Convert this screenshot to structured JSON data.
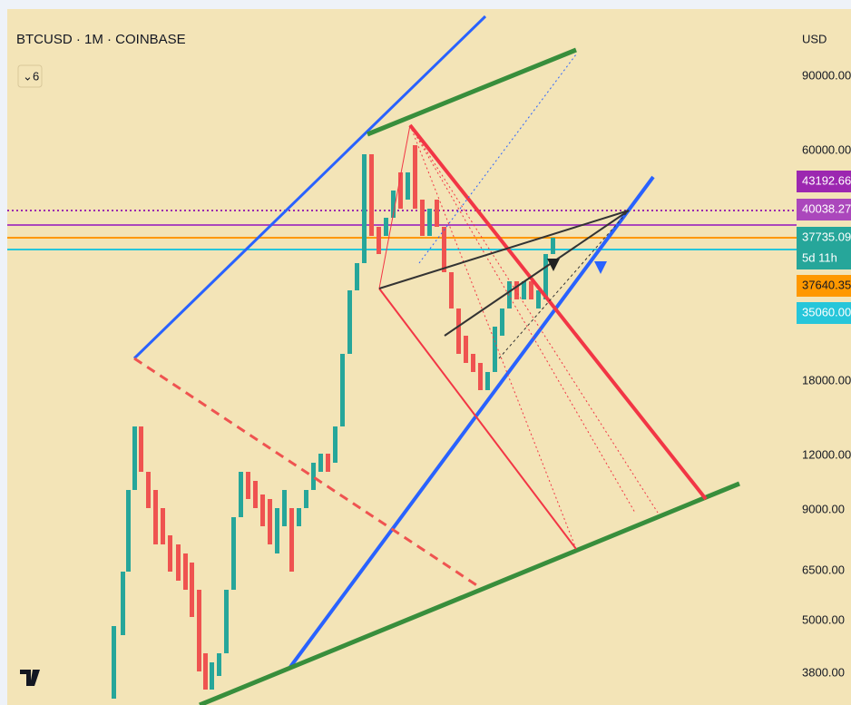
{
  "header": {
    "symbol": "BTCUSD · 1M · COINBASE",
    "indicators": "6",
    "currency": "USD"
  },
  "price_axis": [
    "90000.00",
    "60000.00",
    "18000.00",
    "12000.00",
    "9000.00",
    "6500.00",
    "5000.00",
    "3800.00"
  ],
  "price_tags": [
    "43192.66",
    "40038.27",
    "37735.09",
    "5d 11h",
    "37640.35",
    "35060.00"
  ]
}
